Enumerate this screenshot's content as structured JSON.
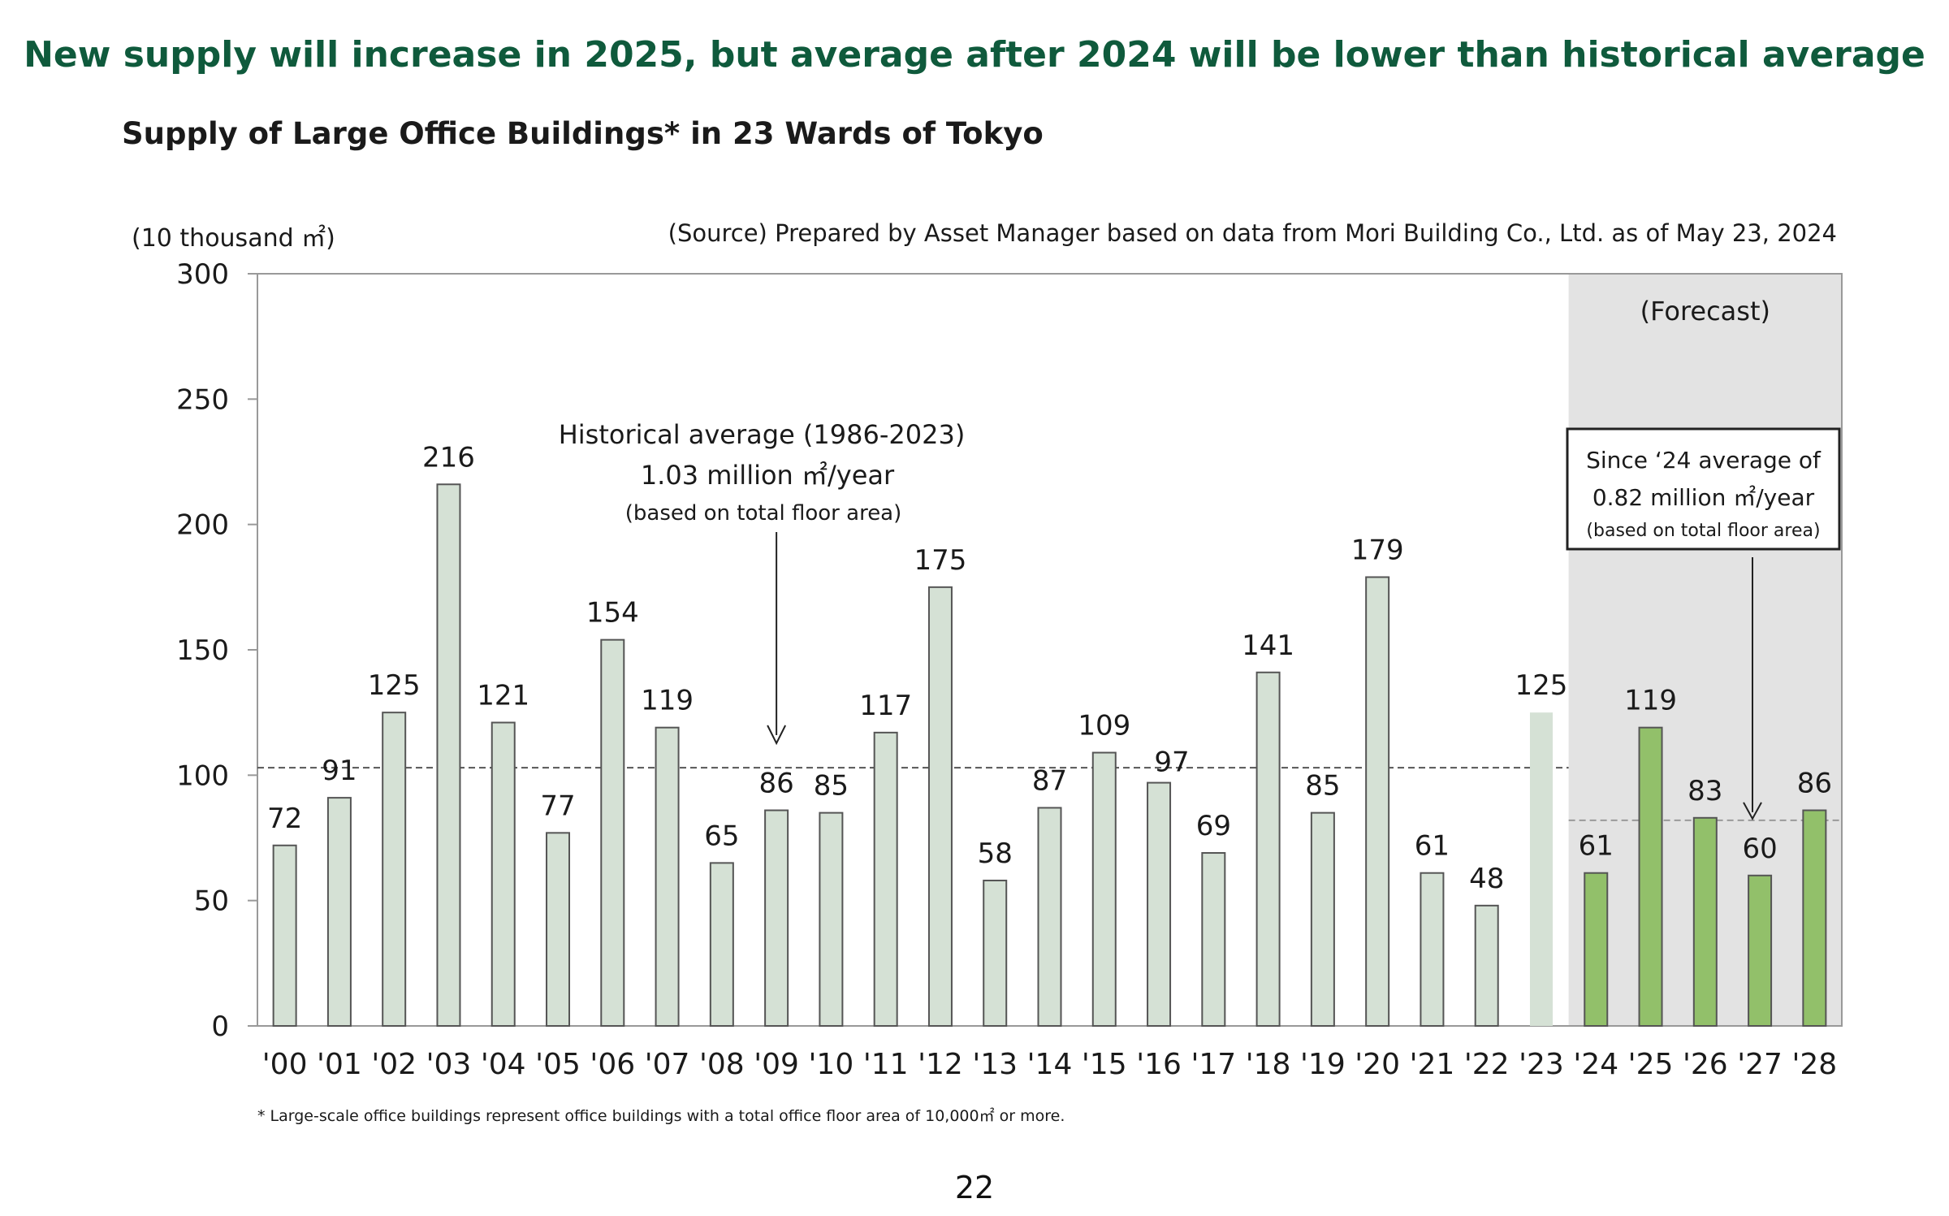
{
  "headline": "New supply will increase in 2025, but average after 2024 will be lower than historical average",
  "subtitle": "Supply of Large Office Buildings* in 23 Wards of Tokyo",
  "page_number": "22",
  "chart_data": {
    "type": "bar",
    "title": "Supply of Large Office Buildings* in 23 Wards of Tokyo",
    "ylabel": "(10 thousand ㎡)",
    "source": "(Source) Prepared by Asset Manager based on data from Mori Building Co., Ltd. as of May 23, 2024",
    "footnote": "* Large-scale office buildings represent office buildings with a total office floor area of 10,000㎡ or more.",
    "ylim": [
      0,
      300
    ],
    "yticks": [
      0,
      50,
      100,
      150,
      200,
      250,
      300
    ],
    "categories": [
      "'00",
      "'01",
      "'02",
      "'03",
      "'04",
      "'05",
      "'06",
      "'07",
      "'08",
      "'09",
      "'10",
      "'11",
      "'12",
      "'13",
      "'14",
      "'15",
      "'16",
      "'17",
      "'18",
      "'19",
      "'20",
      "'21",
      "'22",
      "'23",
      "'24",
      "'25",
      "'26",
      "'27",
      "'28"
    ],
    "values": [
      72,
      91,
      125,
      216,
      121,
      77,
      154,
      119,
      65,
      86,
      85,
      117,
      175,
      58,
      87,
      109,
      97,
      69,
      141,
      85,
      179,
      61,
      48,
      125,
      61,
      119,
      83,
      60,
      86
    ],
    "bar_kind": [
      "actual",
      "actual",
      "actual",
      "actual",
      "actual",
      "actual",
      "actual",
      "actual",
      "actual",
      "actual",
      "actual",
      "actual",
      "actual",
      "actual",
      "actual",
      "actual",
      "actual",
      "actual",
      "actual",
      "actual",
      "actual",
      "actual",
      "actual",
      "estimate",
      "forecast",
      "forecast",
      "forecast",
      "forecast",
      "forecast"
    ],
    "forecast_label": "(Forecast)",
    "forecast_start_category": "'24",
    "historical_average": {
      "value": 103,
      "lines": [
        "Historical average (1986-2023)",
        "1.03 million ㎡/year",
        "(based on total floor area)"
      ]
    },
    "forecast_average": {
      "value": 82,
      "lines": [
        "Since ‘24 average of",
        "0.82 million ㎡/year",
        "(based on total floor area)"
      ]
    },
    "colors": {
      "actual_fill": "#d5e1d5",
      "estimate_fill": "#d5e1d5",
      "forecast_fill": "#92c06a",
      "bar_stroke": "#555555",
      "forecast_band": "#e3e3e3",
      "axis": "#999999",
      "text": "#1a1a1a"
    }
  }
}
